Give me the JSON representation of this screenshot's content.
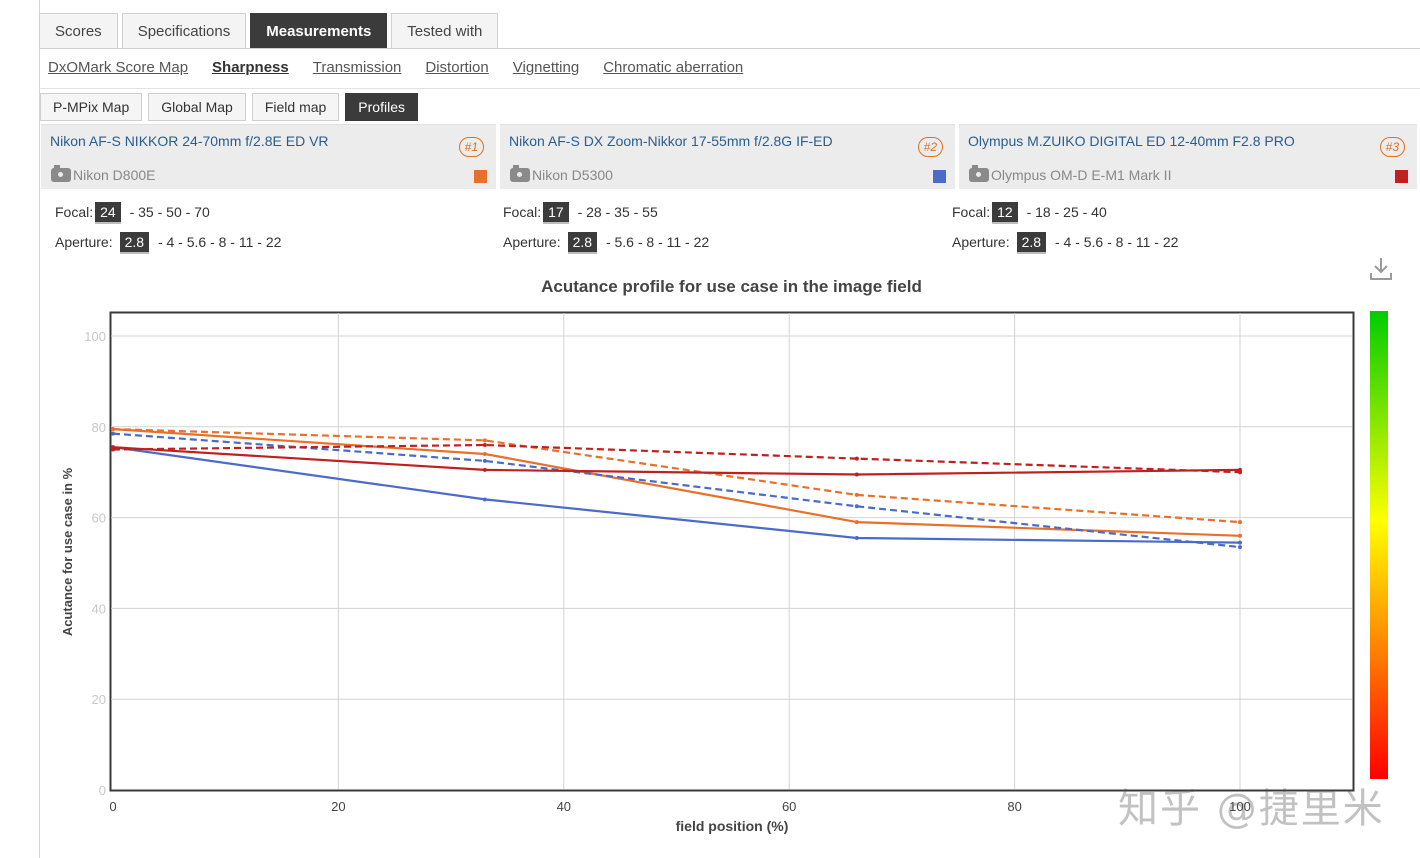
{
  "tabs": [
    {
      "label": "Scores",
      "active": false
    },
    {
      "label": "Specifications",
      "active": false
    },
    {
      "label": "Measurements",
      "active": true
    },
    {
      "label": "Tested with",
      "active": false
    }
  ],
  "subnav": [
    {
      "label": "DxOMark Score Map",
      "active": false
    },
    {
      "label": "Sharpness",
      "active": true
    },
    {
      "label": "Transmission",
      "active": false
    },
    {
      "label": "Distortion",
      "active": false
    },
    {
      "label": "Vignetting",
      "active": false
    },
    {
      "label": "Chromatic aberration",
      "active": false
    }
  ],
  "small_tabs": [
    {
      "label": "P-MPix Map",
      "active": false
    },
    {
      "label": "Global Map",
      "active": false
    },
    {
      "label": "Field map",
      "active": false
    },
    {
      "label": "Profiles",
      "active": true
    }
  ],
  "lenses": [
    {
      "name": "Nikon AF-S NIKKOR 24-70mm f/2.8E ED VR",
      "badge": "#1",
      "camera": "Nikon D800E",
      "color": "#e8702a",
      "focal_label": "Focal:",
      "focal_selected": "24",
      "focal_rest": " - 35 - 50 - 70",
      "aperture_label": "Aperture:",
      "aperture_selected": "2.8",
      "aperture_rest": " - 4 - 5.6 - 8 - 11 - 22"
    },
    {
      "name": "Nikon AF-S DX Zoom-Nikkor 17-55mm f/2.8G IF-ED",
      "badge": "#2",
      "camera": "Nikon D5300",
      "color": "#4a6bc8",
      "focal_label": "Focal:",
      "focal_selected": "17",
      "focal_rest": " - 28 - 35 - 55",
      "aperture_label": "Aperture:",
      "aperture_selected": "2.8",
      "aperture_rest": " - 5.6 - 8 - 11 - 22"
    },
    {
      "name": "Olympus M.ZUIKO DIGITAL ED 12-40mm F2.8 PRO",
      "badge": "#3",
      "camera": "Olympus OM-D E-M1 Mark II",
      "color": "#c0201e",
      "focal_label": "Focal:",
      "focal_selected": "12",
      "focal_rest": " - 18 - 25 - 40",
      "aperture_label": "Aperture:",
      "aperture_selected": "2.8",
      "aperture_rest": " - 4 - 5.6 - 8 - 11 - 22"
    }
  ],
  "watermark": "知乎 @捷里米",
  "chart_data": {
    "type": "line",
    "title": "Acutance profile for use case in the image field",
    "xlabel": "field position (%)",
    "ylabel": "Acutance for use case in %",
    "xlim": [
      0,
      100
    ],
    "ylim": [
      0,
      105
    ],
    "xticks": [
      0,
      20,
      40,
      60,
      80,
      100
    ],
    "yticks": [
      0,
      20,
      40,
      60,
      80,
      100
    ],
    "grid": true,
    "color_scale": [
      "#ff0000",
      "#ff8c00",
      "#ffff00",
      "#00cc00"
    ],
    "series": [
      {
        "color": "#e8702a",
        "dashed": false,
        "points": [
          [
            0,
            79.5
          ],
          [
            33,
            74
          ],
          [
            66,
            59
          ],
          [
            100,
            56
          ]
        ]
      },
      {
        "color": "#e8702a",
        "dashed": true,
        "points": [
          [
            0,
            79.5
          ],
          [
            33,
            77
          ],
          [
            66,
            65
          ],
          [
            100,
            59
          ]
        ]
      },
      {
        "color": "#4a6bc8",
        "dashed": false,
        "points": [
          [
            0,
            75.5
          ],
          [
            33,
            64
          ],
          [
            66,
            55.5
          ],
          [
            100,
            54.5
          ]
        ]
      },
      {
        "color": "#4a6bc8",
        "dashed": true,
        "points": [
          [
            0,
            78.5
          ],
          [
            33,
            72.5
          ],
          [
            66,
            62.5
          ],
          [
            100,
            53.5
          ]
        ]
      },
      {
        "color": "#c0201e",
        "dashed": false,
        "points": [
          [
            0,
            75.5
          ],
          [
            33,
            70.5
          ],
          [
            66,
            69.5
          ],
          [
            100,
            70.5
          ]
        ]
      },
      {
        "color": "#c0201e",
        "dashed": true,
        "points": [
          [
            0,
            75
          ],
          [
            33,
            76
          ],
          [
            66,
            73
          ],
          [
            100,
            70
          ]
        ]
      }
    ]
  }
}
